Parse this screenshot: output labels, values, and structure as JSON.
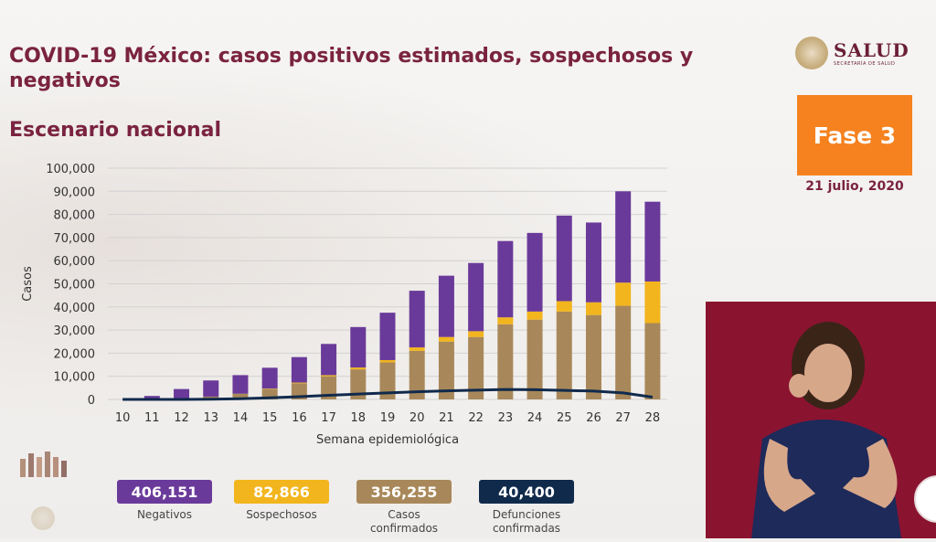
{
  "header": {
    "title": "COVID-19 México: casos positivos estimados, sospechosos y negativos",
    "subtitle": "Escenario nacional"
  },
  "logo": {
    "text": "SALUD",
    "subtext": "SECRETARÍA DE SALUD"
  },
  "phase_badge": {
    "label": "Fase 3",
    "color": "#f5821f"
  },
  "date": "21 julio, 2020",
  "legend": [
    {
      "value": "406,151",
      "label": "Negativos",
      "color": "#6a3a9a"
    },
    {
      "value": "82,866",
      "label": "Sospechosos",
      "color": "#f2b51d"
    },
    {
      "value": "356,255",
      "label": "Casos confirmados",
      "color": "#a8885a"
    },
    {
      "value": "40,400",
      "label": "Defunciones confirmadas",
      "color": "#102a4c"
    }
  ],
  "chart_data": {
    "type": "bar",
    "stacked": true,
    "xlabel": "Semana epidemiológica",
    "ylabel": "Casos",
    "ylim": [
      0,
      100000
    ],
    "yticks": [
      "0",
      "10,000",
      "20,000",
      "30,000",
      "40,000",
      "50,000",
      "60,000",
      "70,000",
      "80,000",
      "90,000",
      "100,000"
    ],
    "categories": [
      "10",
      "11",
      "12",
      "13",
      "14",
      "15",
      "16",
      "17",
      "18",
      "19",
      "20",
      "21",
      "22",
      "23",
      "24",
      "25",
      "26",
      "27",
      "28"
    ],
    "grid": true,
    "series": [
      {
        "name": "Casos confirmados",
        "color": "#a8885a",
        "values": [
          0,
          100,
          500,
          1200,
          2500,
          4500,
          7000,
          10000,
          13000,
          16000,
          21000,
          25000,
          27000,
          32500,
          34500,
          38000,
          36500,
          40500,
          33000
        ]
      },
      {
        "name": "Sospechosos",
        "color": "#f2b51d",
        "values": [
          0,
          0,
          0,
          0,
          0,
          200,
          300,
          500,
          800,
          1000,
          1500,
          2000,
          2500,
          3000,
          3500,
          4500,
          5500,
          10000,
          18000
        ]
      },
      {
        "name": "Negativos",
        "color": "#6a3a9a",
        "values": [
          0,
          1400,
          4000,
          7000,
          8000,
          9000,
          11000,
          13500,
          17500,
          20500,
          24500,
          26500,
          29500,
          33000,
          34000,
          37000,
          34500,
          39500,
          34500
        ]
      }
    ],
    "line_series": {
      "name": "Defunciones confirmadas",
      "color": "#102a4c",
      "values": [
        0,
        0,
        0,
        100,
        300,
        700,
        1200,
        1800,
        2300,
        2800,
        3300,
        3700,
        4000,
        4300,
        4200,
        3900,
        3600,
        2800,
        1000
      ]
    }
  }
}
